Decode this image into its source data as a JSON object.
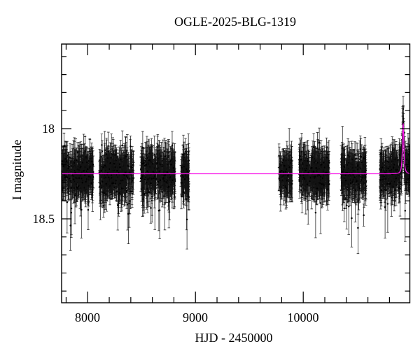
{
  "figure": {
    "title": "OGLE-2025-BLG-1319",
    "xlabel": "HJD - 2450000",
    "ylabel": "I magnitude"
  },
  "chart_data": {
    "type": "scatter",
    "title": "OGLE-2025-BLG-1319",
    "xlabel": "HJD - 2450000",
    "ylabel": "I magnitude",
    "x_axis": {
      "lim": [
        7758,
        10989
      ],
      "major_ticks": [
        8000,
        9000,
        10000
      ],
      "major_tick_labels": [
        "8000",
        "9000",
        "10000"
      ],
      "minor_tick_step": 200
    },
    "y_axis": {
      "lim": [
        18.965,
        17.531
      ],
      "inverted": true,
      "major_ticks": [
        18,
        18.5
      ],
      "major_tick_labels": [
        "18",
        "18.5"
      ],
      "minor_tick_step": 0.1
    },
    "grid": false,
    "legend": "none",
    "frame_color": "#000000",
    "marker_color": "#000000",
    "errorbar_color": "#141414",
    "baseline_mag": 18.25,
    "model": {
      "color": "#f716e8",
      "baseline_mag": 18.25,
      "peak_mag": 17.97,
      "t0": 10927,
      "width_days": 9,
      "shape_exponent": 1.3
    },
    "event_points": {
      "t_start": 10868,
      "t_end": 10962,
      "sigma_mag": 0.05,
      "peak_point_mag_brightest": 17.89
    },
    "seasons": [
      {
        "t_start": 7762,
        "t_end": 8053,
        "n": 310,
        "mean_mag": 18.25,
        "sigma_mag": 0.055,
        "typ_err_mag": 0.07,
        "seed": 101
      },
      {
        "t_start": 8108,
        "t_end": 8424,
        "n": 330,
        "mean_mag": 18.25,
        "sigma_mag": 0.055,
        "typ_err_mag": 0.07,
        "seed": 202
      },
      {
        "t_start": 8492,
        "t_end": 8812,
        "n": 330,
        "mean_mag": 18.25,
        "sigma_mag": 0.055,
        "typ_err_mag": 0.07,
        "seed": 303
      },
      {
        "t_start": 8861,
        "t_end": 8939,
        "n": 90,
        "mean_mag": 18.26,
        "sigma_mag": 0.055,
        "typ_err_mag": 0.07,
        "seed": 404
      },
      {
        "t_start": 9770,
        "t_end": 9898,
        "n": 120,
        "mean_mag": 18.25,
        "sigma_mag": 0.05,
        "typ_err_mag": 0.07,
        "seed": 505
      },
      {
        "t_start": 9962,
        "t_end": 10242,
        "n": 300,
        "mean_mag": 18.25,
        "sigma_mag": 0.055,
        "typ_err_mag": 0.07,
        "seed": 606
      },
      {
        "t_start": 10350,
        "t_end": 10585,
        "n": 260,
        "mean_mag": 18.25,
        "sigma_mag": 0.055,
        "typ_err_mag": 0.07,
        "seed": 707
      },
      {
        "t_start": 10712,
        "t_end": 10983,
        "n": 310,
        "mean_mag": 18.25,
        "sigma_mag": 0.05,
        "typ_err_mag": 0.07,
        "seed": 808,
        "has_event": true
      }
    ]
  }
}
